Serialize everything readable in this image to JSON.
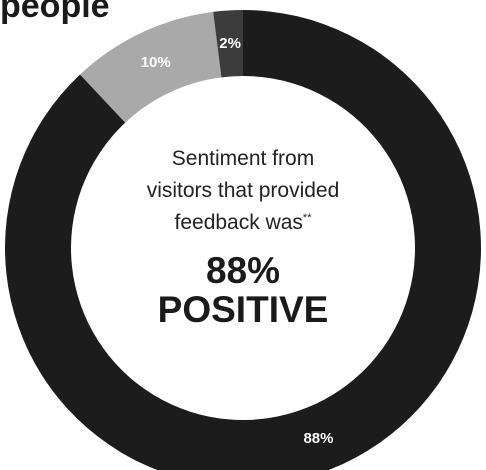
{
  "heading": "people",
  "center": {
    "line1": "Sentiment from",
    "line2": "visitors that provided",
    "line3": "feedback was",
    "footnote_mark": "**",
    "stat_value": "88%",
    "stat_label": "POSITIVE"
  },
  "chart_data": {
    "type": "pie",
    "title": "",
    "slices": [
      {
        "label": "88%",
        "value": 88,
        "color": "#1c1c1c",
        "label_color": "#ffffff"
      },
      {
        "label": "10%",
        "value": 10,
        "color": "#a9a9a9",
        "label_color": "#ffffff"
      },
      {
        "label": "2%",
        "value": 2,
        "color": "#3c3c3c",
        "label_color": "#ffffff"
      }
    ],
    "start": "top",
    "direction": "clockwise",
    "donut": true
  }
}
